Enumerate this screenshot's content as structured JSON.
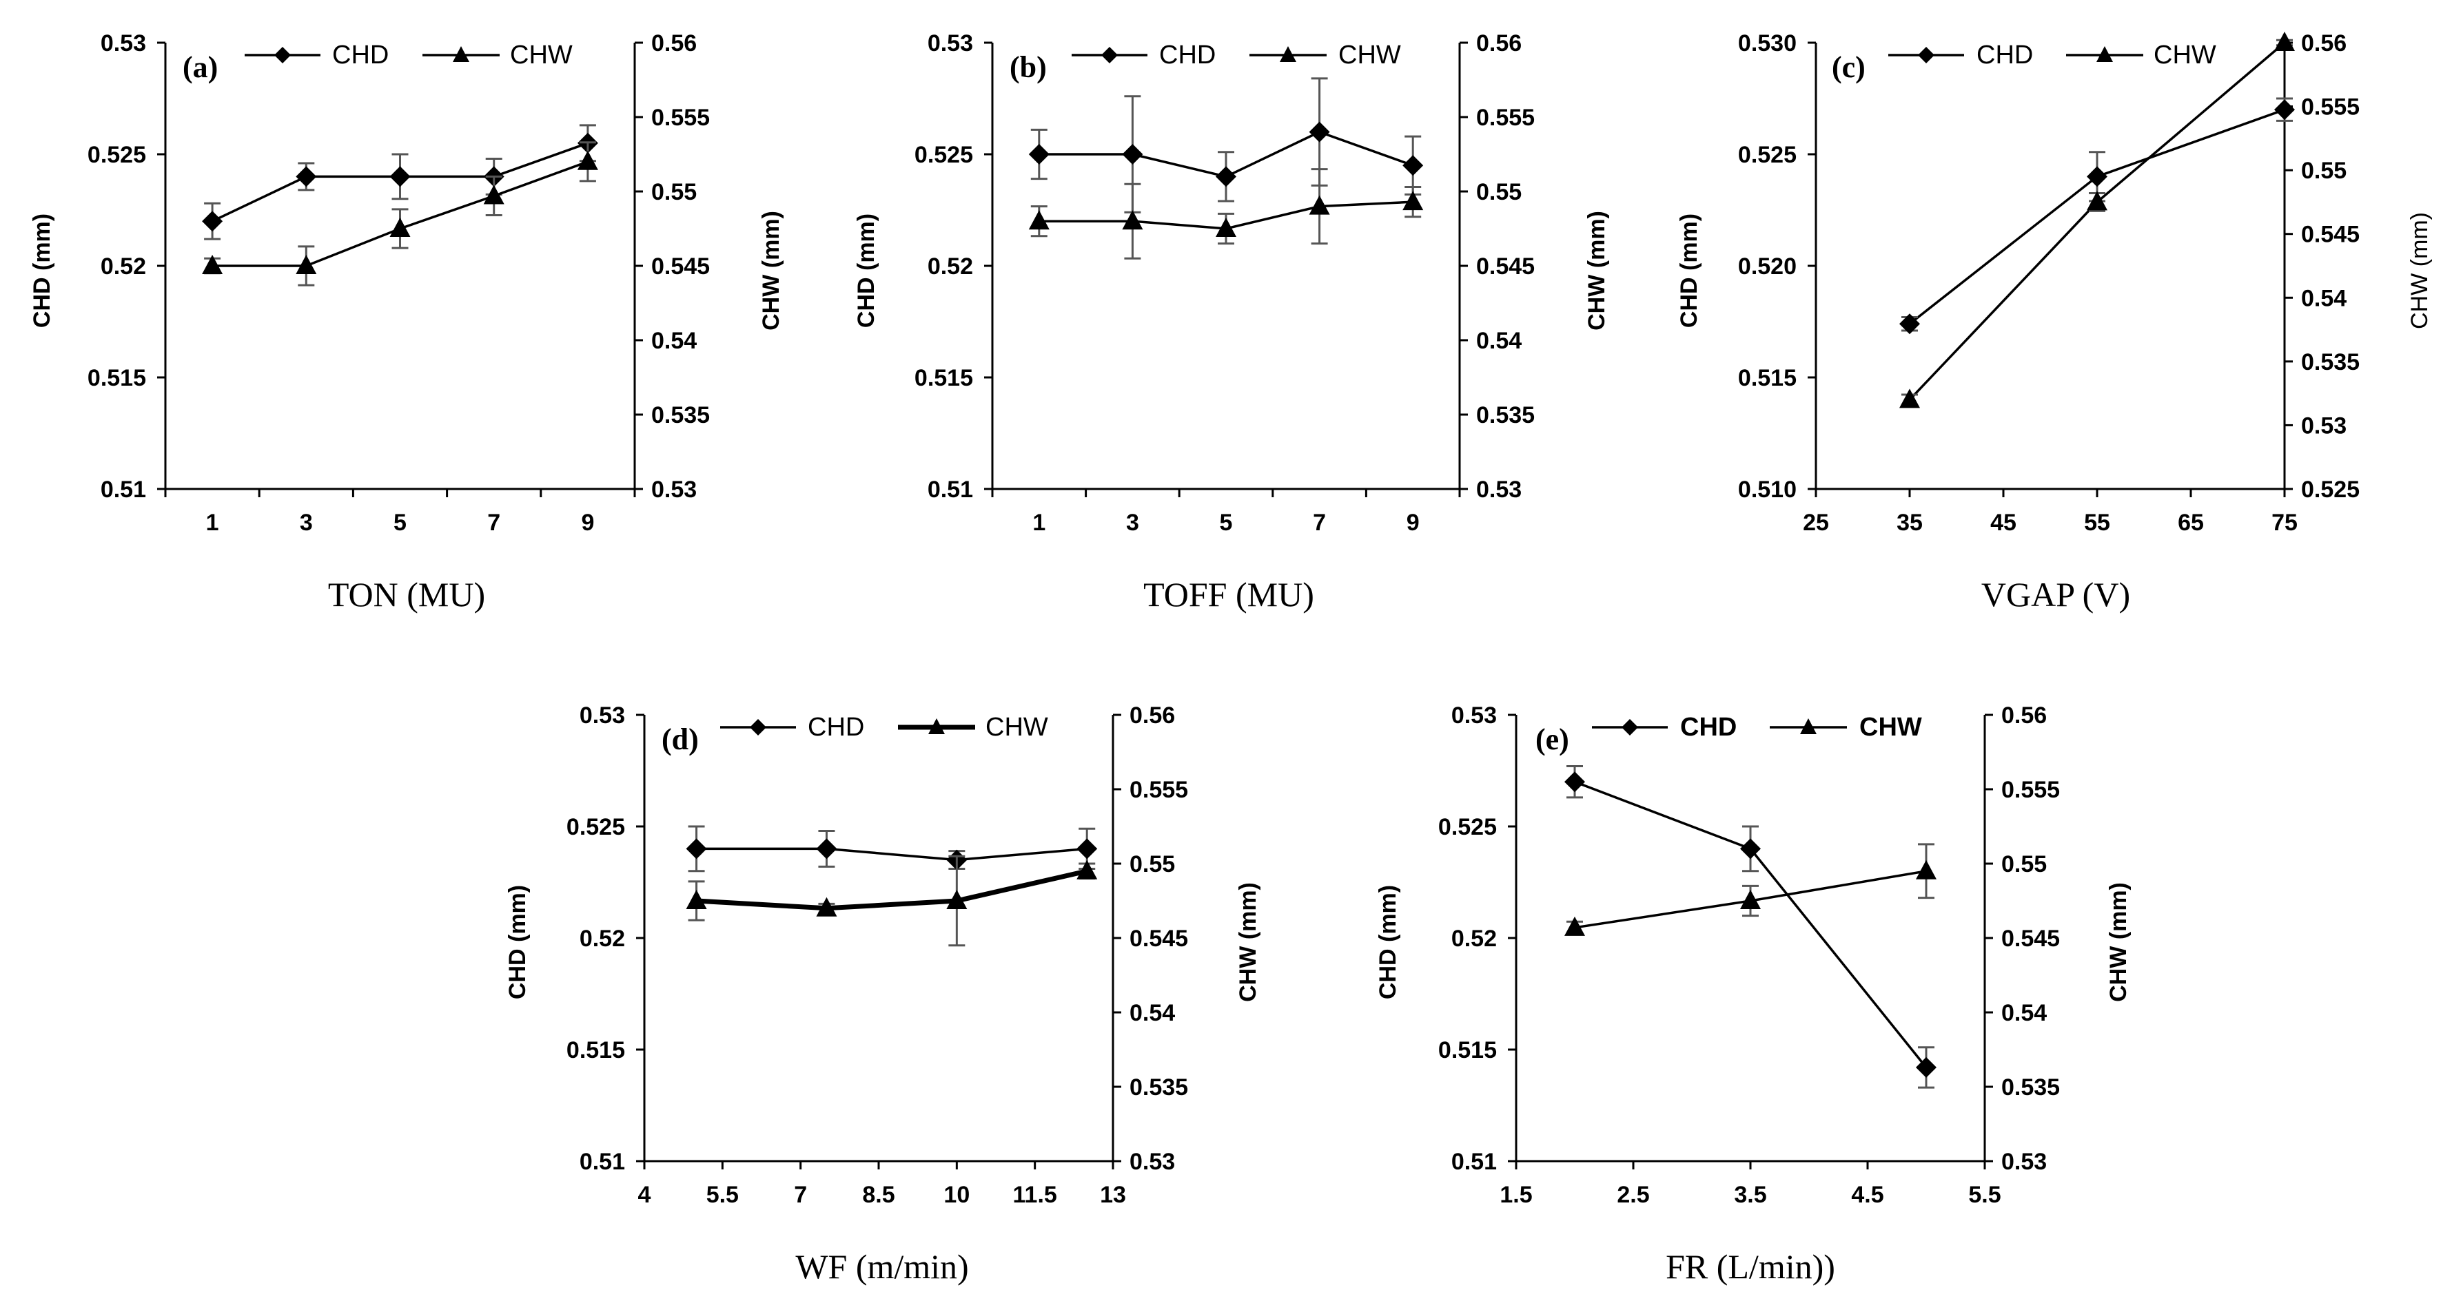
{
  "chart_data": [
    {
      "type": "line",
      "panel_label": "(a)",
      "xlabel": "TON (MU)",
      "ylabel_left": "CHD (mm)",
      "ylabel_right": "CHW (mm)",
      "x_ticks": [
        "1",
        "3",
        "5",
        "7",
        "9"
      ],
      "y_left_ticks": [
        "0.53",
        "0.525",
        "0.52",
        "0.515",
        "0.51"
      ],
      "y_right_ticks": [
        "0.56",
        "0.555",
        "0.55",
        "0.545",
        "0.54",
        "0.535",
        "0.53"
      ],
      "ylim_left": [
        0.51,
        0.53
      ],
      "ylim_right": [
        0.53,
        0.56
      ],
      "legend": [
        "CHD",
        "CHW"
      ],
      "x": [
        1,
        3,
        5,
        7,
        9
      ],
      "series": [
        {
          "name": "CHD",
          "axis": "left",
          "marker": "diamond",
          "values": [
            0.522,
            0.524,
            0.524,
            0.524,
            0.5255
          ],
          "errors": [
            0.0008,
            0.0006,
            0.001,
            0.0008,
            0.0008
          ]
        },
        {
          "name": "CHW",
          "axis": "right",
          "marker": "triangle",
          "values": [
            0.545,
            0.545,
            0.5475,
            0.5497,
            0.552
          ],
          "errors": [
            0.0005,
            0.0013,
            0.0013,
            0.0013,
            0.0013
          ]
        }
      ]
    },
    {
      "type": "line",
      "panel_label": "(b)",
      "xlabel": "TOFF (MU)",
      "ylabel_left": "CHD (mm)",
      "ylabel_right": "CHW (mm)",
      "x_ticks": [
        "1",
        "3",
        "5",
        "7",
        "9"
      ],
      "y_left_ticks": [
        "0.53",
        "0.525",
        "0.52",
        "0.515",
        "0.51"
      ],
      "y_right_ticks": [
        "0.56",
        "0.555",
        "0.55",
        "0.545",
        "0.54",
        "0.535",
        "0.53"
      ],
      "ylim_left": [
        0.51,
        0.53
      ],
      "ylim_right": [
        0.53,
        0.56
      ],
      "legend": [
        "CHD",
        "CHW"
      ],
      "x": [
        1,
        3,
        5,
        7,
        9
      ],
      "series": [
        {
          "name": "CHD",
          "axis": "left",
          "marker": "diamond",
          "values": [
            0.525,
            0.525,
            0.524,
            0.526,
            0.5245
          ],
          "errors": [
            0.0011,
            0.0026,
            0.0011,
            0.0024,
            0.0013
          ]
        },
        {
          "name": "CHW",
          "axis": "right",
          "marker": "triangle",
          "values": [
            0.548,
            0.548,
            0.5475,
            0.549,
            0.5493
          ],
          "errors": [
            0.001,
            0.0025,
            0.001,
            0.0025,
            0.001
          ]
        }
      ]
    },
    {
      "type": "line",
      "panel_label": "(c)",
      "xlabel": "VGAP (V)",
      "ylabel_left": "CHD (mm)",
      "ylabel_right": "CHW (mm)",
      "x_ticks": [
        "25",
        "35",
        "45",
        "55",
        "65",
        "75"
      ],
      "y_left_ticks": [
        "0.530",
        "0.525",
        "0.520",
        "0.515",
        "0.510"
      ],
      "y_right_ticks": [
        "0.56",
        "0.555",
        "0.55",
        "0.545",
        "0.54",
        "0.535",
        "0.53",
        "0.525"
      ],
      "xlim": [
        25,
        75
      ],
      "ylim_left": [
        0.51,
        0.53
      ],
      "ylim_right": [
        0.525,
        0.56
      ],
      "legend": [
        "CHD",
        "CHW"
      ],
      "x": [
        35,
        55,
        75
      ],
      "series": [
        {
          "name": "CHD",
          "axis": "left",
          "marker": "diamond",
          "values": [
            0.5174,
            0.524,
            0.527
          ],
          "errors": [
            0.0003,
            0.0011,
            0.0005
          ]
        },
        {
          "name": "CHW",
          "axis": "right",
          "marker": "triangle",
          "values": [
            0.532,
            0.5475,
            0.56
          ],
          "errors": [
            0.0004,
            0.0007,
            0.0002
          ]
        }
      ]
    },
    {
      "type": "line",
      "panel_label": "(d)",
      "xlabel": "WF (m/min)",
      "ylabel_left": "CHD (mm)",
      "ylabel_right": "CHW (mm)",
      "x_ticks": [
        "4",
        "5.5",
        "7",
        "8.5",
        "10",
        "11.5",
        "13"
      ],
      "y_left_ticks": [
        "0.53",
        "0.525",
        "0.52",
        "0.515",
        "0.51"
      ],
      "y_right_ticks": [
        "0.56",
        "0.555",
        "0.55",
        "0.545",
        "0.54",
        "0.535",
        "0.53"
      ],
      "xlim": [
        4,
        13
      ],
      "ylim_left": [
        0.51,
        0.53
      ],
      "ylim_right": [
        0.53,
        0.56
      ],
      "legend": [
        "CHD",
        "CHW"
      ],
      "x": [
        5,
        7.5,
        10,
        12.5
      ],
      "series": [
        {
          "name": "CHD",
          "axis": "left",
          "marker": "diamond",
          "values": [
            0.524,
            0.524,
            0.5235,
            0.524
          ],
          "errors": [
            0.001,
            0.0008,
            0.0004,
            0.0009
          ]
        },
        {
          "name": "CHW",
          "axis": "right",
          "marker": "triangle",
          "values": [
            0.5475,
            0.547,
            0.5475,
            0.5495
          ],
          "errors": [
            0.0013,
            0.0003,
            0.003,
            0.0005
          ]
        }
      ]
    },
    {
      "type": "line",
      "panel_label": "(e)",
      "xlabel": "FR (L/min))",
      "ylabel_left": "CHD (mm)",
      "ylabel_right": "CHW (mm)",
      "x_ticks": [
        "1.5",
        "2.5",
        "3.5",
        "4.5",
        "5.5"
      ],
      "y_left_ticks": [
        "0.53",
        "0.525",
        "0.52",
        "0.515",
        "0.51"
      ],
      "y_right_ticks": [
        "0.56",
        "0.555",
        "0.55",
        "0.545",
        "0.54",
        "0.535",
        "0.53"
      ],
      "xlim": [
        1.5,
        5.5
      ],
      "ylim_left": [
        0.51,
        0.53
      ],
      "ylim_right": [
        0.53,
        0.56
      ],
      "legend": [
        "CHD",
        "CHW"
      ],
      "x": [
        2,
        3.5,
        5
      ],
      "series": [
        {
          "name": "CHD",
          "axis": "left",
          "marker": "diamond",
          "values": [
            0.527,
            0.524,
            0.5142
          ],
          "errors": [
            0.0007,
            0.001,
            0.0009
          ]
        },
        {
          "name": "CHW",
          "axis": "right",
          "marker": "triangle",
          "values": [
            0.5457,
            0.5475,
            0.5495
          ],
          "errors": [
            0.0004,
            0.001,
            0.0018
          ]
        }
      ]
    }
  ]
}
